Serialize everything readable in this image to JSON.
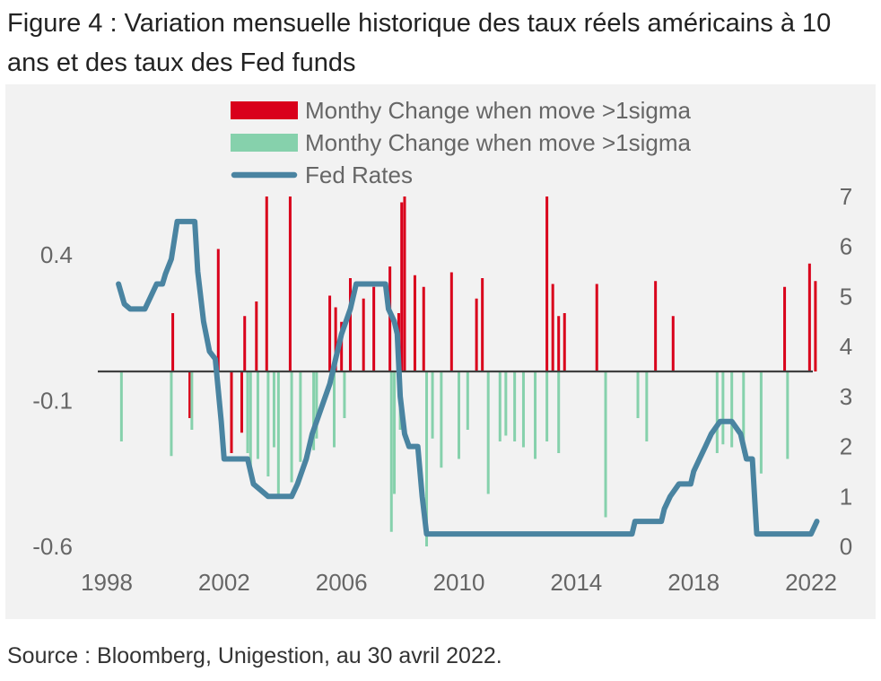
{
  "title": "Figure 4 : Variation mensuelle historique des taux réels américains à 10 ans et des taux des Fed funds",
  "source": "Source : Bloomberg, Unigestion, au 30 avril 2022.",
  "colors": {
    "up": "#d9001b",
    "down": "#86d1ac",
    "fed": "#4a84a1",
    "zero_line": "#404040",
    "axis_text": "#666666",
    "legend_text": "#666666"
  },
  "chart_data": {
    "type": "bar",
    "legend": [
      "Monthy Change when move >1sigma",
      "Monthy Change when move >1sigma",
      "Fed Rates"
    ],
    "x_ticks": [
      "1998",
      "2002",
      "2006",
      "2010",
      "2014",
      "2018",
      "2022"
    ],
    "xlim": [
      1998,
      2022
    ],
    "y_left_ticks": [
      "0.4",
      "-0.1",
      "-0.6"
    ],
    "y_left_tick_values": [
      0.4,
      -0.1,
      -0.6
    ],
    "ylim_left": [
      -0.6,
      0.6
    ],
    "y_right_ticks": [
      "0",
      "1",
      "2",
      "3",
      "4",
      "5",
      "6",
      "7"
    ],
    "ylim_right": [
      0,
      7
    ],
    "series": [
      {
        "name": "Monthy Change when move >1sigma",
        "kind": "bar",
        "points": [
          [
            2000.25,
            0.2
          ],
          [
            2000.83,
            -0.16
          ],
          [
            2001.8,
            0.42
          ],
          [
            2002.25,
            -0.28
          ],
          [
            2002.6,
            -0.21
          ],
          [
            2002.7,
            0.19
          ],
          [
            2003.1,
            0.24
          ],
          [
            2003.45,
            0.6
          ],
          [
            2004.25,
            0.6
          ],
          [
            2005.6,
            0.26
          ],
          [
            2005.8,
            0.22
          ],
          [
            2006.0,
            0.17
          ],
          [
            2006.3,
            0.32
          ],
          [
            2006.75,
            0.25
          ],
          [
            2007.1,
            0.29
          ],
          [
            2007.65,
            0.36
          ],
          [
            2007.95,
            0.2
          ],
          [
            2008.05,
            0.58
          ],
          [
            2008.15,
            0.6
          ],
          [
            2008.5,
            0.33
          ],
          [
            2008.8,
            0.29
          ],
          [
            2009.75,
            0.34
          ],
          [
            2010.6,
            0.25
          ],
          [
            2010.8,
            0.32
          ],
          [
            2013.0,
            0.6
          ],
          [
            2013.2,
            0.3
          ],
          [
            2013.4,
            0.19
          ],
          [
            2013.6,
            0.2
          ],
          [
            2014.7,
            0.3
          ],
          [
            2016.7,
            0.31
          ],
          [
            2017.3,
            0.19
          ],
          [
            2021.1,
            0.29
          ],
          [
            2021.95,
            0.37
          ],
          [
            2022.15,
            0.31
          ]
        ]
      },
      {
        "name": "Monthy Change when move >1sigma",
        "kind": "bar",
        "points": [
          [
            1998.5,
            -0.24
          ],
          [
            2000.2,
            -0.29
          ],
          [
            2000.9,
            -0.2
          ],
          [
            2002.8,
            -0.28
          ],
          [
            2002.9,
            -0.33
          ],
          [
            2003.15,
            -0.3
          ],
          [
            2003.5,
            -0.36
          ],
          [
            2003.7,
            -0.26
          ],
          [
            2003.85,
            -0.43
          ],
          [
            2004.3,
            -0.38
          ],
          [
            2004.6,
            -0.31
          ],
          [
            2005.05,
            -0.27
          ],
          [
            2005.15,
            -0.23
          ],
          [
            2005.75,
            -0.26
          ],
          [
            2006.1,
            -0.16
          ],
          [
            2007.7,
            -0.55
          ],
          [
            2007.8,
            -0.42
          ],
          [
            2008.0,
            -0.2
          ],
          [
            2008.9,
            -0.6
          ],
          [
            2009.1,
            -0.23
          ],
          [
            2009.4,
            -0.33
          ],
          [
            2010.0,
            -0.3
          ],
          [
            2010.3,
            -0.2
          ],
          [
            2011.0,
            -0.42
          ],
          [
            2011.4,
            -0.24
          ],
          [
            2011.6,
            -0.22
          ],
          [
            2011.9,
            -0.24
          ],
          [
            2012.2,
            -0.26
          ],
          [
            2012.6,
            -0.3
          ],
          [
            2013.0,
            -0.24
          ],
          [
            2013.4,
            -0.28
          ],
          [
            2015.0,
            -0.5
          ],
          [
            2016.1,
            -0.16
          ],
          [
            2016.4,
            -0.24
          ],
          [
            2018.8,
            -0.28
          ],
          [
            2019.0,
            -0.25
          ],
          [
            2019.3,
            -0.26
          ],
          [
            2019.7,
            -0.28
          ],
          [
            2020.3,
            -0.35
          ],
          [
            2021.2,
            -0.3
          ]
        ]
      },
      {
        "name": "Fed Rates",
        "kind": "line",
        "points": [
          [
            1998.4,
            5.25
          ],
          [
            1998.6,
            4.85
          ],
          [
            1998.8,
            4.75
          ],
          [
            1999.0,
            4.75
          ],
          [
            1999.3,
            4.75
          ],
          [
            1999.5,
            5.0
          ],
          [
            1999.7,
            5.25
          ],
          [
            1999.9,
            5.25
          ],
          [
            2000.0,
            5.45
          ],
          [
            2000.2,
            5.75
          ],
          [
            2000.4,
            6.5
          ],
          [
            2000.6,
            6.5
          ],
          [
            2000.8,
            6.5
          ],
          [
            2001.0,
            6.5
          ],
          [
            2001.1,
            5.5
          ],
          [
            2001.3,
            4.5
          ],
          [
            2001.5,
            3.9
          ],
          [
            2001.7,
            3.75
          ],
          [
            2001.9,
            2.5
          ],
          [
            2002.0,
            1.75
          ],
          [
            2002.5,
            1.75
          ],
          [
            2002.8,
            1.75
          ],
          [
            2003.0,
            1.25
          ],
          [
            2003.5,
            1.0
          ],
          [
            2004.0,
            1.0
          ],
          [
            2004.3,
            1.0
          ],
          [
            2004.5,
            1.25
          ],
          [
            2004.8,
            1.75
          ],
          [
            2005.0,
            2.25
          ],
          [
            2005.3,
            2.75
          ],
          [
            2005.6,
            3.25
          ],
          [
            2005.8,
            3.75
          ],
          [
            2006.0,
            4.25
          ],
          [
            2006.3,
            4.75
          ],
          [
            2006.5,
            5.25
          ],
          [
            2007.0,
            5.25
          ],
          [
            2007.5,
            5.25
          ],
          [
            2007.6,
            4.75
          ],
          [
            2007.8,
            4.5
          ],
          [
            2007.9,
            4.25
          ],
          [
            2008.0,
            3.0
          ],
          [
            2008.15,
            2.25
          ],
          [
            2008.3,
            2.0
          ],
          [
            2008.5,
            2.0
          ],
          [
            2008.6,
            2.0
          ],
          [
            2008.75,
            1.0
          ],
          [
            2008.9,
            0.25
          ],
          [
            2009.5,
            0.25
          ],
          [
            2011.0,
            0.25
          ],
          [
            2013.0,
            0.25
          ],
          [
            2015.0,
            0.25
          ],
          [
            2015.9,
            0.25
          ],
          [
            2016.0,
            0.5
          ],
          [
            2016.5,
            0.5
          ],
          [
            2016.9,
            0.5
          ],
          [
            2017.0,
            0.75
          ],
          [
            2017.2,
            1.0
          ],
          [
            2017.5,
            1.25
          ],
          [
            2017.9,
            1.25
          ],
          [
            2018.0,
            1.5
          ],
          [
            2018.2,
            1.75
          ],
          [
            2018.4,
            2.0
          ],
          [
            2018.6,
            2.25
          ],
          [
            2018.9,
            2.5
          ],
          [
            2019.3,
            2.5
          ],
          [
            2019.6,
            2.25
          ],
          [
            2019.8,
            1.75
          ],
          [
            2020.0,
            1.75
          ],
          [
            2020.15,
            0.25
          ],
          [
            2021.0,
            0.25
          ],
          [
            2022.0,
            0.25
          ],
          [
            2022.2,
            0.5
          ]
        ]
      }
    ]
  }
}
